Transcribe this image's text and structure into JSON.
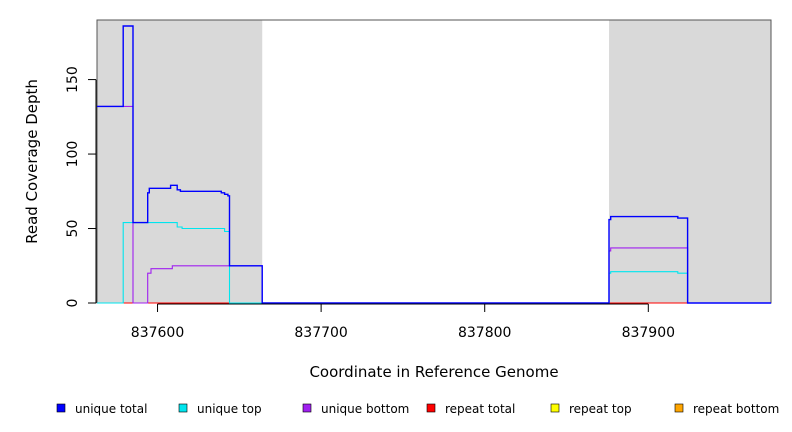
{
  "chart_data": {
    "type": "line",
    "xlabel": "Coordinate in Reference Genome",
    "ylabel": "Read Coverage Depth",
    "xlim": [
      837563,
      837975
    ],
    "ylim": [
      0,
      190
    ],
    "x_ticks": [
      837600,
      837700,
      837800,
      837900
    ],
    "x_tick_labels": [
      "837600",
      "837700",
      "837800",
      "837900"
    ],
    "y_ticks": [
      0,
      50,
      100,
      150
    ],
    "y_tick_labels": [
      "0",
      "50",
      "100",
      "150"
    ],
    "shaded_regions": [
      [
        837563,
        837664
      ],
      [
        837876,
        837975
      ]
    ],
    "grid": false,
    "legend_position": "bottom",
    "series": [
      {
        "name": "unique total",
        "color": "#0000ff",
        "points": [
          [
            837563,
            132
          ],
          [
            837579,
            132
          ],
          [
            837579,
            186
          ],
          [
            837585,
            186
          ],
          [
            837585,
            54
          ],
          [
            837594,
            54
          ],
          [
            837594,
            74
          ],
          [
            837595,
            74
          ],
          [
            837595,
            77
          ],
          [
            837608,
            77
          ],
          [
            837608,
            79
          ],
          [
            837612,
            79
          ],
          [
            837612,
            76
          ],
          [
            837614,
            76
          ],
          [
            837614,
            75
          ],
          [
            837639,
            75
          ],
          [
            837639,
            74
          ],
          [
            837641,
            74
          ],
          [
            837641,
            73
          ],
          [
            837643,
            73
          ],
          [
            837643,
            72
          ],
          [
            837644,
            72
          ],
          [
            837644,
            25
          ],
          [
            837664,
            25
          ],
          [
            837664,
            0
          ],
          [
            837876,
            0
          ],
          [
            837876,
            56
          ],
          [
            837877,
            56
          ],
          [
            837877,
            58
          ],
          [
            837918,
            58
          ],
          [
            837918,
            57
          ],
          [
            837924,
            57
          ],
          [
            837924,
            0
          ],
          [
            837975,
            0
          ]
        ]
      },
      {
        "name": "unique top",
        "color": "#00e5ee",
        "points": [
          [
            837563,
            0
          ],
          [
            837579,
            0
          ],
          [
            837579,
            54
          ],
          [
            837612,
            54
          ],
          [
            837612,
            51
          ],
          [
            837615,
            51
          ],
          [
            837615,
            50
          ],
          [
            837641,
            50
          ],
          [
            837641,
            48
          ],
          [
            837644,
            48
          ],
          [
            837644,
            0
          ],
          [
            837876,
            0
          ],
          [
            837876,
            20
          ],
          [
            837877,
            20
          ],
          [
            837877,
            21
          ],
          [
            837918,
            21
          ],
          [
            837918,
            20
          ],
          [
            837924,
            20
          ],
          [
            837924,
            0
          ],
          [
            837975,
            0
          ]
        ]
      },
      {
        "name": "unique bottom",
        "color": "#a020f0",
        "points": [
          [
            837563,
            132
          ],
          [
            837585,
            132
          ],
          [
            837585,
            0
          ],
          [
            837594,
            0
          ],
          [
            837594,
            20
          ],
          [
            837596,
            20
          ],
          [
            837596,
            23
          ],
          [
            837609,
            23
          ],
          [
            837609,
            25
          ],
          [
            837644,
            25
          ],
          [
            837644,
            25
          ],
          [
            837664,
            25
          ],
          [
            837664,
            0
          ],
          [
            837876,
            0
          ],
          [
            837876,
            35
          ],
          [
            837877,
            35
          ],
          [
            837877,
            37
          ],
          [
            837924,
            37
          ],
          [
            837924,
            0
          ],
          [
            837975,
            0
          ]
        ]
      },
      {
        "name": "repeat total",
        "color": "#ff0000",
        "points": [
          [
            837563,
            0
          ],
          [
            837975,
            0
          ]
        ]
      },
      {
        "name": "repeat top",
        "color": "#ffff00",
        "points": [
          [
            837563,
            0
          ],
          [
            837975,
            0
          ]
        ]
      },
      {
        "name": "repeat bottom",
        "color": "#ffa500",
        "points": [
          [
            837563,
            0
          ],
          [
            837975,
            0
          ]
        ]
      }
    ]
  }
}
